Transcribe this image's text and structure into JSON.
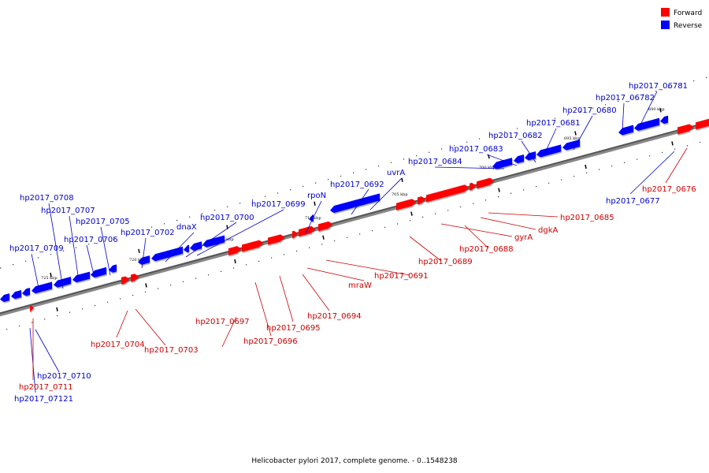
{
  "legend": {
    "forward": {
      "label": "Forward",
      "color": "#ff0000"
    },
    "reverse": {
      "label": "Reverse",
      "color": "#0000ff"
    }
  },
  "caption": "Helicobacter pylori 2017, complete genome. - 0..1548238",
  "ticks": [
    "725 kbp",
    "720 kbp",
    "715 kbp",
    "710 kbp",
    "705 kbp",
    "700 kbp",
    "695 kbp",
    "690 kbp"
  ],
  "genes": {
    "reverse": [
      "hp2017_0708",
      "hp2017_0707",
      "hp2017_0705",
      "hp2017_0706",
      "hp2017_0709",
      "hp2017_0702",
      "dnaX",
      "hp2017_0700",
      "hp2017_0699",
      "rpoN",
      "hp2017_0692",
      "uvrA",
      "hp2017_0684",
      "hp2017_0683",
      "hp2017_0682",
      "hp2017_0681",
      "hp2017_0680",
      "hp2017_06782",
      "hp2017_06781",
      "hp2017_0677",
      "hp2017_0710",
      "hp2017_07121"
    ],
    "forward": [
      "hp2017_0676",
      "hp2017_0685",
      "dgkA",
      "gyrA",
      "hp2017_0688",
      "hp2017_0689",
      "hp2017_0691",
      "mraW",
      "hp2017_0694",
      "hp2017_0695",
      "hp2017_0696",
      "hp2017_0697",
      "hp2017_0704",
      "hp2017_0703",
      "hp2017_0711"
    ]
  }
}
